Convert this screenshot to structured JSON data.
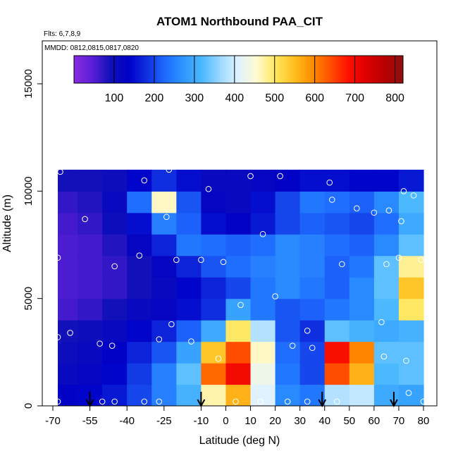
{
  "chart_data": {
    "type": "heatmap",
    "title": "ATOM1 Northbound PAA_CIT",
    "flights_note": "Flts: 6,7,8,9",
    "dates_note": "MMDD: 0812,0815,0817,0820",
    "xlabel": "Latitude (deg N)",
    "ylabel": "Altitude (m)",
    "xlim": [
      -70,
      80
    ],
    "ylim": [
      0,
      17000
    ],
    "x_ticks": [
      -70,
      -55,
      -40,
      -25,
      -10,
      0,
      10,
      20,
      30,
      40,
      50,
      60,
      70,
      80
    ],
    "x_tick_labels": [
      "-70",
      "-55",
      "-40",
      "-25",
      "-10",
      "0",
      "10",
      "20",
      "30",
      "40",
      "50",
      "60",
      "70",
      "80"
    ],
    "y_ticks": [
      0,
      5000,
      10000,
      15000
    ],
    "y_tick_labels": [
      "0",
      "5000",
      "10000",
      "15000"
    ],
    "colorbar": {
      "min": 0,
      "max": 820,
      "ticks": [
        100,
        200,
        300,
        400,
        500,
        600,
        700,
        800
      ],
      "tick_labels": [
        "100",
        "200",
        "300",
        "400",
        "500",
        "600",
        "700",
        "800"
      ],
      "colors": [
        "#8a2be2",
        "#5a1fd6",
        "#1010b8",
        "#0000c8",
        "#1030e0",
        "#1e6cff",
        "#2e96ff",
        "#4ab8ff",
        "#9cd8ff",
        "#e0f2ff",
        "#fffad0",
        "#ffe860",
        "#ffc020",
        "#ff9000",
        "#ff5000",
        "#ff1000",
        "#dd0000",
        "#b80000",
        "#8e1010"
      ]
    },
    "grid": {
      "x_edges": [
        -68,
        -60,
        -50,
        -40,
        -30,
        -20,
        -10,
        0,
        10,
        20,
        30,
        40,
        50,
        60,
        70,
        80
      ],
      "y_edges": [
        0,
        1000,
        2000,
        3000,
        4000,
        5000,
        6000,
        7000,
        8000,
        9000,
        10000,
        11000
      ],
      "values": [
        [
          130,
          140,
          160,
          200,
          250,
          310,
          470,
          560,
          410,
          260,
          240,
          380,
          390,
          300,
          290
        ],
        [
          110,
          120,
          140,
          190,
          250,
          330,
          620,
          700,
          430,
          240,
          200,
          640,
          560,
          320,
          330
        ],
        [
          100,
          110,
          130,
          170,
          210,
          290,
          540,
          640,
          460,
          230,
          200,
          690,
          600,
          330,
          330
        ],
        [
          90,
          100,
          110,
          140,
          170,
          220,
          300,
          500,
          380,
          210,
          180,
          330,
          310,
          300,
          310
        ],
        [
          60,
          70,
          90,
          110,
          120,
          150,
          180,
          290,
          240,
          210,
          220,
          240,
          260,
          320,
          500
        ],
        [
          55,
          60,
          70,
          90,
          110,
          140,
          170,
          200,
          240,
          260,
          240,
          220,
          260,
          330,
          540
        ],
        [
          55,
          60,
          70,
          90,
          120,
          170,
          210,
          230,
          250,
          260,
          250,
          220,
          240,
          330,
          480
        ],
        [
          55,
          60,
          80,
          120,
          170,
          240,
          230,
          220,
          230,
          260,
          250,
          230,
          220,
          260,
          330
        ],
        [
          60,
          70,
          100,
          150,
          250,
          220,
          150,
          130,
          160,
          200,
          220,
          210,
          200,
          230,
          300
        ],
        [
          70,
          80,
          110,
          230,
          460,
          210,
          120,
          110,
          150,
          200,
          240,
          230,
          220,
          260,
          320
        ],
        [
          90,
          90,
          100,
          140,
          180,
          150,
          110,
          110,
          120,
          130,
          150,
          150,
          140,
          140,
          160
        ]
      ]
    },
    "observation_points": [
      {
        "lat": -68,
        "alt": 200
      },
      {
        "lat": -68,
        "alt": 3200
      },
      {
        "lat": -68,
        "alt": 6900
      },
      {
        "lat": -67,
        "alt": 10900
      },
      {
        "lat": -63,
        "alt": 3400
      },
      {
        "lat": -57,
        "alt": 8700
      },
      {
        "lat": -51,
        "alt": 2900
      },
      {
        "lat": -50,
        "alt": 200
      },
      {
        "lat": -46,
        "alt": 2800
      },
      {
        "lat": -45,
        "alt": 6500
      },
      {
        "lat": -45,
        "alt": 200
      },
      {
        "lat": -35,
        "alt": 7000
      },
      {
        "lat": -33,
        "alt": 200
      },
      {
        "lat": -33,
        "alt": 10500
      },
      {
        "lat": -27,
        "alt": 3100
      },
      {
        "lat": -27,
        "alt": 200
      },
      {
        "lat": -24,
        "alt": 8800
      },
      {
        "lat": -23,
        "alt": 11000
      },
      {
        "lat": -22,
        "alt": 3800
      },
      {
        "lat": -20,
        "alt": 6800
      },
      {
        "lat": -16,
        "alt": 11300
      },
      {
        "lat": -14,
        "alt": 3000
      },
      {
        "lat": -10,
        "alt": 6800
      },
      {
        "lat": -7,
        "alt": 10100
      },
      {
        "lat": -3,
        "alt": 2200
      },
      {
        "lat": -1,
        "alt": 6700
      },
      {
        "lat": 4,
        "alt": 200
      },
      {
        "lat": 6,
        "alt": 4700
      },
      {
        "lat": 10,
        "alt": 10700
      },
      {
        "lat": 14,
        "alt": 200
      },
      {
        "lat": 15,
        "alt": 8000
      },
      {
        "lat": 20,
        "alt": 5100
      },
      {
        "lat": 22,
        "alt": 10700
      },
      {
        "lat": 25,
        "alt": 200
      },
      {
        "lat": 27,
        "alt": 2800
      },
      {
        "lat": 33,
        "alt": 200
      },
      {
        "lat": 33,
        "alt": 3500
      },
      {
        "lat": 35,
        "alt": 2700
      },
      {
        "lat": 42,
        "alt": 10400
      },
      {
        "lat": 43,
        "alt": 9600
      },
      {
        "lat": 45,
        "alt": 200
      },
      {
        "lat": 47,
        "alt": 6600
      },
      {
        "lat": 53,
        "alt": 9200
      },
      {
        "lat": 60,
        "alt": 9000
      },
      {
        "lat": 63,
        "alt": 3900
      },
      {
        "lat": 64,
        "alt": 2300
      },
      {
        "lat": 65,
        "alt": 6600
      },
      {
        "lat": 66,
        "alt": 9100
      },
      {
        "lat": 70,
        "alt": 6900
      },
      {
        "lat": 70,
        "alt": 11200
      },
      {
        "lat": 71,
        "alt": 8600
      },
      {
        "lat": 72,
        "alt": 10000
      },
      {
        "lat": 73,
        "alt": 2100
      },
      {
        "lat": 74,
        "alt": 600
      },
      {
        "lat": 76,
        "alt": 9800
      },
      {
        "lat": 79,
        "alt": 6800
      },
      {
        "lat": 80,
        "alt": 200
      }
    ],
    "arrows_lat": [
      -55,
      -10,
      39,
      68
    ]
  }
}
